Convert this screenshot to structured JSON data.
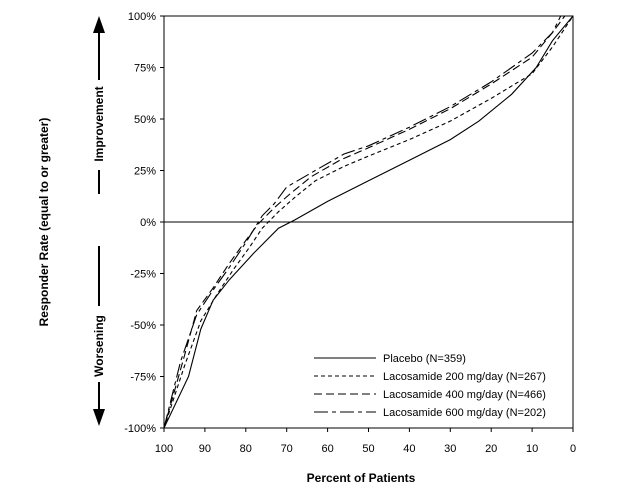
{
  "chart_data": {
    "type": "line",
    "xlabel": "Percent of Patients",
    "ylabel": "Responder Rate (equal to or greater)",
    "side_labels": {
      "upper": "Improvement",
      "lower": "Worsening"
    },
    "x_reversed": true,
    "xlim": [
      100,
      0
    ],
    "ylim": [
      -100,
      100
    ],
    "x_ticks": [
      100,
      90,
      80,
      70,
      60,
      50,
      40,
      30,
      20,
      10,
      0
    ],
    "y_ticks": [
      -100,
      -75,
      -50,
      -25,
      0,
      25,
      50,
      75,
      100
    ],
    "y_tick_labels": [
      "-100%",
      "-75%",
      "-50%",
      "-25%",
      "0%",
      "25%",
      "50%",
      "75%",
      "100%"
    ],
    "reference_line_y": 0,
    "legend_position": "bottom-right",
    "series": [
      {
        "name": "Placebo (N=359)",
        "dash": "solid",
        "points": [
          [
            100,
            -100
          ],
          [
            94,
            -75
          ],
          [
            91,
            -52
          ],
          [
            88,
            -38
          ],
          [
            84,
            -28
          ],
          [
            78,
            -15
          ],
          [
            72,
            -3
          ],
          [
            68,
            1
          ],
          [
            60,
            10
          ],
          [
            50,
            20
          ],
          [
            40,
            30
          ],
          [
            30,
            40
          ],
          [
            23,
            49
          ],
          [
            15,
            62
          ],
          [
            9,
            75
          ],
          [
            5,
            88
          ],
          [
            0,
            100
          ]
        ]
      },
      {
        "name": "Lacosamide 200 mg/day (N=267)",
        "dash": "short",
        "points": [
          [
            100,
            -100
          ],
          [
            95,
            -70
          ],
          [
            91,
            -48
          ],
          [
            87,
            -35
          ],
          [
            83,
            -23
          ],
          [
            79,
            -12
          ],
          [
            76,
            -3
          ],
          [
            72,
            5
          ],
          [
            68,
            12
          ],
          [
            63,
            20
          ],
          [
            56,
            27
          ],
          [
            50,
            32
          ],
          [
            40,
            40
          ],
          [
            30,
            49
          ],
          [
            20,
            60
          ],
          [
            10,
            72
          ],
          [
            5,
            85
          ],
          [
            0,
            100
          ]
        ]
      },
      {
        "name": "Lacosamide 400 mg/day (N=466)",
        "dash": "medium",
        "points": [
          [
            100,
            -100
          ],
          [
            95,
            -65
          ],
          [
            92,
            -43
          ],
          [
            88,
            -32
          ],
          [
            84,
            -20
          ],
          [
            80,
            -9
          ],
          [
            77,
            -1
          ],
          [
            73,
            7
          ],
          [
            69,
            14
          ],
          [
            64,
            22
          ],
          [
            57,
            30
          ],
          [
            50,
            36
          ],
          [
            40,
            45
          ],
          [
            30,
            55
          ],
          [
            20,
            67
          ],
          [
            10,
            80
          ],
          [
            5,
            92
          ],
          [
            2,
            100
          ]
        ]
      },
      {
        "name": "Lacosamide 600 mg/day (N=202)",
        "dash": "long",
        "points": [
          [
            100,
            -100
          ],
          [
            96,
            -68
          ],
          [
            92,
            -45
          ],
          [
            88,
            -33
          ],
          [
            84,
            -22
          ],
          [
            80,
            -10
          ],
          [
            76,
            3
          ],
          [
            73,
            9
          ],
          [
            70,
            17
          ],
          [
            63,
            25
          ],
          [
            56,
            33
          ],
          [
            50,
            37
          ],
          [
            40,
            46
          ],
          [
            30,
            56
          ],
          [
            20,
            68
          ],
          [
            10,
            82
          ],
          [
            5,
            92
          ],
          [
            3,
            100
          ]
        ]
      }
    ]
  }
}
